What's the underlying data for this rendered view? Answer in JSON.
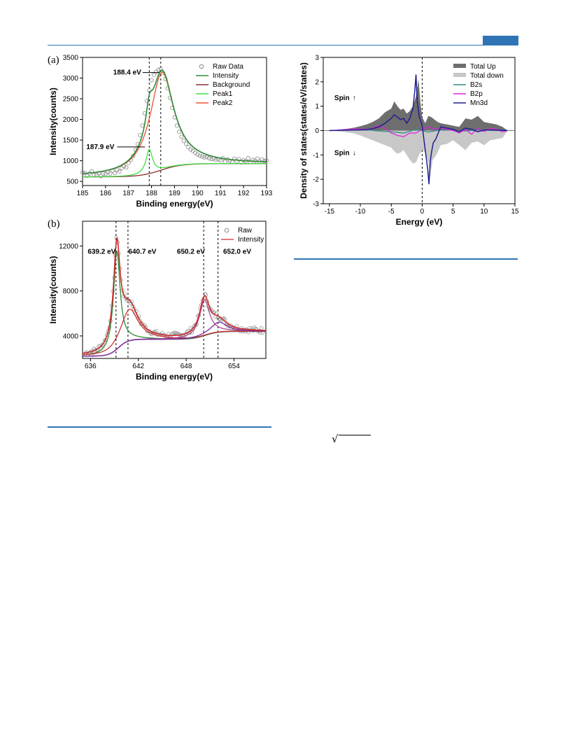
{
  "page": {
    "sqrt_symbol": "√"
  },
  "chart_data": [
    {
      "id": "a",
      "panel_label": "(a)",
      "type": "line",
      "xlabel": "Binding energy(eV)",
      "ylabel": "Intensity(counts)",
      "xlim": [
        185,
        193
      ],
      "ylim": [
        400,
        3500
      ],
      "xticks": [
        185,
        186,
        187,
        188,
        189,
        190,
        191,
        192,
        193
      ],
      "yticks": [
        500,
        1000,
        1500,
        2000,
        2500,
        3000,
        3500
      ],
      "vlines": [
        187.9,
        188.4
      ],
      "legend_position": "top-right",
      "legend": [
        "Raw Data",
        "Intensity",
        "Background",
        "Peak1",
        "Peak2"
      ],
      "colors": {
        "raw": "#8a8a8a",
        "intensity": "#2e8b3a",
        "background": "#8b2f2f",
        "peak1": "#44dd44",
        "peak2": "#e8542e"
      },
      "annotations": [
        {
          "text": "188.4 eV",
          "x": 188.4,
          "y": 3050
        },
        {
          "text": "187.9 eV",
          "x": 187.9,
          "y": 1350
        }
      ],
      "model": {
        "background": {
          "low": 610,
          "high": 930,
          "center": 188.4,
          "width": 0.45
        },
        "peaks": [
          {
            "name": "Peak1",
            "center": 187.9,
            "amplitude": 580,
            "fwhm": 0.35
          },
          {
            "name": "Peak2",
            "center": 188.45,
            "amplitude": 2360,
            "fwhm": 1.25
          }
        ]
      },
      "raw_points": [
        [
          185.0,
          720
        ],
        [
          185.1,
          700
        ],
        [
          185.2,
          640
        ],
        [
          185.3,
          690
        ],
        [
          185.4,
          740
        ],
        [
          185.5,
          650
        ],
        [
          185.6,
          660
        ],
        [
          185.7,
          700
        ],
        [
          185.8,
          630
        ],
        [
          185.9,
          690
        ],
        [
          186.0,
          680
        ],
        [
          186.1,
          720
        ],
        [
          186.2,
          690
        ],
        [
          186.3,
          760
        ],
        [
          186.4,
          700
        ],
        [
          186.5,
          780
        ],
        [
          186.6,
          740
        ],
        [
          186.7,
          820
        ],
        [
          186.8,
          870
        ],
        [
          186.9,
          840
        ],
        [
          187.0,
          950
        ],
        [
          187.1,
          1020
        ],
        [
          187.2,
          1120
        ],
        [
          187.3,
          1260
        ],
        [
          187.4,
          1400
        ],
        [
          187.5,
          1620
        ],
        [
          187.6,
          1850
        ],
        [
          187.7,
          2150
        ],
        [
          187.8,
          2450
        ],
        [
          187.9,
          2700
        ],
        [
          188.0,
          2950
        ],
        [
          188.1,
          3080
        ],
        [
          188.2,
          3150
        ],
        [
          188.3,
          3200
        ],
        [
          188.4,
          3220
        ],
        [
          188.5,
          3120
        ],
        [
          188.6,
          2980
        ],
        [
          188.7,
          2750
        ],
        [
          188.8,
          2520
        ],
        [
          188.9,
          2280
        ],
        [
          189.0,
          2050
        ],
        [
          189.1,
          1850
        ],
        [
          189.2,
          1700
        ],
        [
          189.3,
          1580
        ],
        [
          189.4,
          1480
        ],
        [
          189.5,
          1410
        ],
        [
          189.6,
          1330
        ],
        [
          189.7,
          1270
        ],
        [
          189.8,
          1240
        ],
        [
          189.9,
          1190
        ],
        [
          190.0,
          1150
        ],
        [
          190.1,
          1120
        ],
        [
          190.2,
          1100
        ],
        [
          190.3,
          1080
        ],
        [
          190.4,
          1090
        ],
        [
          190.5,
          1060
        ],
        [
          190.6,
          1040
        ],
        [
          190.7,
          1050
        ],
        [
          190.8,
          1020
        ],
        [
          190.9,
          1030
        ],
        [
          191.0,
          1010
        ],
        [
          191.1,
          1060
        ],
        [
          191.2,
          980
        ],
        [
          191.3,
          1030
        ],
        [
          191.4,
          1000
        ],
        [
          191.5,
          970
        ],
        [
          191.6,
          1050
        ],
        [
          191.7,
          990
        ],
        [
          191.8,
          1040
        ],
        [
          191.9,
          960
        ],
        [
          192.0,
          1010
        ],
        [
          192.1,
          990
        ],
        [
          192.2,
          1060
        ],
        [
          192.3,
          970
        ],
        [
          192.4,
          1020
        ],
        [
          192.5,
          1000
        ],
        [
          192.6,
          1050
        ],
        [
          192.7,
          980
        ],
        [
          192.8,
          1030
        ],
        [
          192.9,
          990
        ],
        [
          193.0,
          1010
        ]
      ]
    },
    {
      "id": "b",
      "panel_label": "(b)",
      "type": "line",
      "xlabel": "Binding energy(eV)",
      "ylabel": "Intensity(counts)",
      "xlim": [
        635,
        658
      ],
      "ylim": [
        2000,
        14200
      ],
      "xticks": [
        636,
        642,
        648,
        654
      ],
      "yticks": [
        4000,
        8000,
        12000
      ],
      "vlines": [
        639.2,
        640.7,
        650.2,
        652.0
      ],
      "legend_position": "top-right",
      "legend": [
        "Raw",
        "Intensity"
      ],
      "colors": {
        "raw": "#8a8a8a",
        "intensity": "#e04a4a",
        "envelope": "#cc2a2a",
        "background": "#8b3a7a",
        "peak_a": "#2e8b3a",
        "peak_b": "#cc3333",
        "peak_c": "#b04a8a",
        "peak_d": "#7a2aa0"
      },
      "annotations": [
        {
          "text": "639.2 eV",
          "x": 637.4,
          "y": 11300
        },
        {
          "text": "640.7 eV",
          "x": 642.5,
          "y": 11300
        },
        {
          "text": "650.2 eV",
          "x": 648.6,
          "y": 11300
        },
        {
          "text": "652.0 eV",
          "x": 654.4,
          "y": 11300
        }
      ],
      "model": {
        "steps": [
          {
            "center": 639.5,
            "height": 1500,
            "width": 0.6
          },
          {
            "center": 650.4,
            "height": 700,
            "width": 0.8
          }
        ],
        "base": 2200,
        "peaks": [
          {
            "name": "p1",
            "center": 639.3,
            "amplitude": 8700,
            "fwhm": 1.0,
            "color": "peak_a"
          },
          {
            "name": "p2",
            "center": 640.9,
            "amplitude": 2800,
            "fwhm": 2.6,
            "color": "peak_b"
          },
          {
            "name": "p3",
            "center": 650.3,
            "amplitude": 3200,
            "fwhm": 1.5,
            "color": "peak_c"
          },
          {
            "name": "p4",
            "center": 652.1,
            "amplitude": 900,
            "fwhm": 2.4,
            "color": "peak_d"
          }
        ]
      }
    },
    {
      "id": "c",
      "type": "area",
      "xlabel": "Energy (eV)",
      "ylabel": "Density of states(states/eV/states)",
      "xlim": [
        -16,
        15
      ],
      "ylim": [
        -3,
        3
      ],
      "xticks": [
        -15,
        -10,
        -5,
        0,
        5,
        10,
        15
      ],
      "yticks": [
        -3,
        -2,
        -1,
        0,
        1,
        2,
        3
      ],
      "vlines": [
        0
      ],
      "legend_position": "top-right",
      "legend": [
        "Total Up",
        "Total down",
        "B2s",
        "B2p",
        "Mn3d"
      ],
      "colors": {
        "up": "#6e6e6e",
        "down": "#c8c8c8",
        "b2s": "#2f8f86",
        "b2p": "#e020e0",
        "mn3d": "#1f1f8f"
      },
      "annotations": [
        {
          "text": "Spin",
          "arrow": "↑",
          "x": -14.2,
          "y": 1.25
        },
        {
          "text": "Spin",
          "arrow": "↓",
          "x": -14.2,
          "y": -1.0
        }
      ],
      "series": [
        {
          "name": "Total Up",
          "x": [
            -15,
            -14,
            -13,
            -12,
            -11,
            -10,
            -9,
            -8,
            -7,
            -6,
            -5,
            -4.5,
            -4,
            -3.5,
            -3,
            -2.5,
            -2,
            -1.5,
            -1,
            -0.6,
            -0.3,
            0,
            0.5,
            1,
            1.5,
            2,
            2.5,
            3,
            4,
            5,
            6,
            7,
            8,
            9,
            10,
            11,
            12,
            13,
            13.8
          ],
          "values": [
            0,
            0.02,
            0.05,
            0.08,
            0.12,
            0.18,
            0.25,
            0.35,
            0.5,
            0.75,
            0.9,
            1.2,
            1.0,
            0.85,
            0.9,
            0.7,
            0.8,
            1.0,
            1.4,
            2.1,
            1.2,
            0.55,
            0.3,
            0.6,
            0.55,
            0.45,
            0.35,
            0.3,
            0.25,
            0.2,
            0.15,
            0.5,
            0.45,
            0.6,
            0.35,
            0.3,
            0.25,
            0.15,
            0
          ]
        },
        {
          "name": "Total down",
          "x": [
            -15,
            -14,
            -13,
            -12,
            -11,
            -10,
            -9,
            -8,
            -7,
            -6,
            -5,
            -4.5,
            -4,
            -3.5,
            -3,
            -2.5,
            -2,
            -1.5,
            -1,
            -0.5,
            0,
            0.5,
            1,
            1.3,
            1.7,
            2,
            2.5,
            3,
            4,
            5,
            6,
            7,
            8,
            9,
            10,
            11,
            12,
            13,
            13.8
          ],
          "values": [
            0,
            -0.02,
            -0.04,
            -0.08,
            -0.12,
            -0.2,
            -0.3,
            -0.4,
            -0.5,
            -0.6,
            -0.7,
            -0.85,
            -0.95,
            -0.9,
            -0.8,
            -1.0,
            -1.2,
            -1.35,
            -1.3,
            -1.0,
            -0.8,
            -0.9,
            -1.3,
            -1.9,
            -1.2,
            -1.1,
            -0.9,
            -0.6,
            -0.55,
            -0.4,
            -0.6,
            -0.8,
            -0.5,
            -0.45,
            -0.6,
            -0.4,
            -0.35,
            -0.3,
            0
          ]
        },
        {
          "name": "B2s",
          "x": [
            -15,
            -13,
            -11,
            -9,
            -7,
            -5,
            -3,
            -1,
            0,
            1,
            3,
            5,
            7,
            9,
            11,
            13,
            13.8
          ],
          "values": [
            0,
            0.02,
            0.04,
            0.03,
            -0.02,
            -0.05,
            -0.1,
            0.05,
            0,
            -0.06,
            0.03,
            0.02,
            -0.02,
            0.03,
            0.01,
            0.02,
            0
          ]
        },
        {
          "name": "B2p",
          "x": [
            -15,
            -13,
            -11,
            -9,
            -8,
            -7,
            -6,
            -5,
            -4,
            -3,
            -2,
            -1,
            0,
            1,
            2,
            3,
            4,
            5,
            6,
            7,
            8,
            9,
            10,
            11,
            12,
            13,
            13.8
          ],
          "values": [
            0,
            0.03,
            0.06,
            0.05,
            0.1,
            0.2,
            0.1,
            -0.1,
            -0.2,
            -0.25,
            -0.1,
            -0.1,
            0.05,
            0.15,
            0.05,
            0.1,
            0.05,
            0,
            -0.1,
            0.05,
            -0.15,
            0.1,
            -0.05,
            0.1,
            0.05,
            -0.05,
            0
          ]
        },
        {
          "name": "Mn3d",
          "x": [
            -15,
            -13,
            -11,
            -9,
            -8,
            -7,
            -6,
            -5,
            -4.5,
            -4,
            -3.5,
            -3,
            -2.5,
            -2,
            -1.5,
            -1.2,
            -1,
            -0.8,
            -0.5,
            0,
            0.3,
            0.6,
            0.9,
            1.1,
            1.3,
            1.5,
            1.8,
            2.2,
            3,
            4,
            5,
            6,
            7,
            8,
            9,
            10,
            11,
            12,
            13,
            13.8
          ],
          "values": [
            0,
            0.01,
            0.02,
            0.04,
            0.08,
            0.15,
            0.3,
            0.5,
            0.65,
            0.55,
            0.45,
            0.5,
            0.3,
            0.5,
            0.9,
            1.6,
            2.3,
            1.2,
            0.6,
            0.2,
            -0.4,
            -1.0,
            -1.6,
            -2.2,
            -1.3,
            -0.9,
            -0.5,
            -0.35,
            0.15,
            0.1,
            0.05,
            -0.05,
            0.1,
            0.05,
            -0.05,
            0.02,
            0.02,
            0.01,
            0.01,
            0
          ]
        }
      ]
    }
  ]
}
